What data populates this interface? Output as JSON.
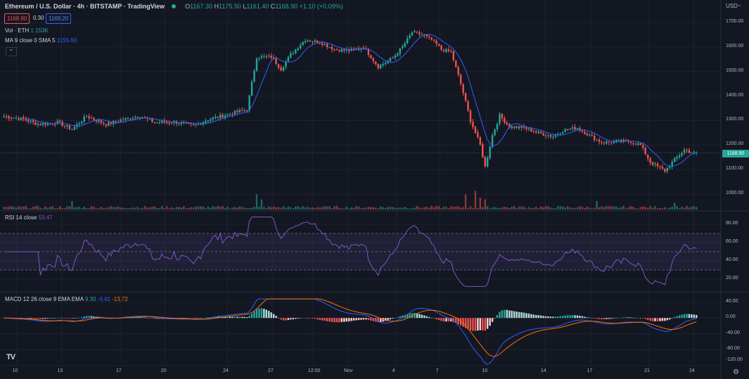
{
  "header": {
    "title": "Ethereum / U.S. Dollar · 4h · BITSTAMP · TradingView",
    "open_key": "O",
    "open": "1167.30",
    "high_key": "H",
    "high": "1175.50",
    "low_key": "L",
    "low": "1161.40",
    "close_key": "C",
    "close": "1168.90",
    "change": "+1.10 (+0.09%)",
    "bid": "1168.90",
    "spread": "0.30",
    "ask": "1169.20",
    "volume_label": "Vol · ETH",
    "volume_value": "1.153K",
    "ma_label": "MA 9 close 0 SMA 5",
    "ma_value": "1155.60",
    "currency": "USD~"
  },
  "rsi_legend": {
    "label": "RSI 14 close",
    "value": "53.47"
  },
  "macd_legend": {
    "label": "MACD 12 26 close 9 EMA EMA",
    "hist": "9.30",
    "macd": "-4.41",
    "signal": "-13.72"
  },
  "last_price_tag": "1168.90",
  "logo": "TV",
  "colors": {
    "up": "#26a69a",
    "down": "#ef5350",
    "ma": "#2962ff",
    "rsi": "#7e57c2",
    "macd": "#2962ff",
    "signal": "#ff6d00",
    "background": "#131722"
  },
  "x_labels": [
    "10",
    "13",
    "17",
    "20",
    "24",
    "27",
    "12:00",
    "Nov",
    "4",
    "7",
    "10",
    "14",
    "17",
    "21",
    "24"
  ],
  "chart_data": [
    {
      "type": "candlestick",
      "title": "Ethereum / U.S. Dollar · 4h · BITSTAMP",
      "ylim": [
        940,
        1740
      ],
      "y_ticks": [
        "1700.00",
        "1600.00",
        "1500.00",
        "1400.00",
        "1300.00",
        "1200.00",
        "1100.00",
        "1000.00"
      ],
      "close_anchors": [
        {
          "i": 0,
          "v": 1318
        },
        {
          "i": 8,
          "v": 1305
        },
        {
          "i": 14,
          "v": 1285
        },
        {
          "i": 22,
          "v": 1292
        },
        {
          "i": 28,
          "v": 1265
        },
        {
          "i": 34,
          "v": 1318
        },
        {
          "i": 42,
          "v": 1284
        },
        {
          "i": 48,
          "v": 1302
        },
        {
          "i": 56,
          "v": 1318
        },
        {
          "i": 62,
          "v": 1292
        },
        {
          "i": 70,
          "v": 1295
        },
        {
          "i": 78,
          "v": 1278
        },
        {
          "i": 84,
          "v": 1305
        },
        {
          "i": 90,
          "v": 1320
        },
        {
          "i": 96,
          "v": 1335
        },
        {
          "i": 100,
          "v": 1345
        },
        {
          "i": 104,
          "v": 1560
        },
        {
          "i": 110,
          "v": 1560
        },
        {
          "i": 114,
          "v": 1510
        },
        {
          "i": 118,
          "v": 1570
        },
        {
          "i": 124,
          "v": 1630
        },
        {
          "i": 130,
          "v": 1620
        },
        {
          "i": 136,
          "v": 1590
        },
        {
          "i": 142,
          "v": 1585
        },
        {
          "i": 148,
          "v": 1600
        },
        {
          "i": 154,
          "v": 1520
        },
        {
          "i": 160,
          "v": 1555
        },
        {
          "i": 164,
          "v": 1600
        },
        {
          "i": 168,
          "v": 1660
        },
        {
          "i": 172,
          "v": 1650
        },
        {
          "i": 176,
          "v": 1630
        },
        {
          "i": 180,
          "v": 1590
        },
        {
          "i": 184,
          "v": 1580
        },
        {
          "i": 188,
          "v": 1450
        },
        {
          "i": 192,
          "v": 1300
        },
        {
          "i": 196,
          "v": 1200
        },
        {
          "i": 198,
          "v": 1110
        },
        {
          "i": 201,
          "v": 1240
        },
        {
          "i": 204,
          "v": 1320
        },
        {
          "i": 208,
          "v": 1275
        },
        {
          "i": 214,
          "v": 1270
        },
        {
          "i": 220,
          "v": 1250
        },
        {
          "i": 226,
          "v": 1235
        },
        {
          "i": 230,
          "v": 1260
        },
        {
          "i": 236,
          "v": 1270
        },
        {
          "i": 240,
          "v": 1245
        },
        {
          "i": 246,
          "v": 1210
        },
        {
          "i": 252,
          "v": 1215
        },
        {
          "i": 258,
          "v": 1215
        },
        {
          "i": 262,
          "v": 1200
        },
        {
          "i": 266,
          "v": 1130
        },
        {
          "i": 272,
          "v": 1095
        },
        {
          "i": 276,
          "v": 1140
        },
        {
          "i": 280,
          "v": 1180
        },
        {
          "i": 284,
          "v": 1169
        }
      ],
      "ma_period": 9
    },
    {
      "type": "bar",
      "name": "Vol · ETH",
      "spikes": [
        {
          "i": 28,
          "v": 5
        },
        {
          "i": 104,
          "v": 9
        },
        {
          "i": 106,
          "v": 6
        },
        {
          "i": 190,
          "v": 9
        },
        {
          "i": 194,
          "v": 11
        },
        {
          "i": 196,
          "v": 7
        },
        {
          "i": 198,
          "v": 6
        },
        {
          "i": 244,
          "v": 5
        },
        {
          "i": 276,
          "v": 4
        }
      ]
    },
    {
      "type": "line",
      "name": "RSI 14 close",
      "ylim": [
        10,
        90
      ],
      "y_ticks": [
        "80.00",
        "60.00",
        "40.00",
        "20.00"
      ],
      "bands": [
        70,
        50,
        30
      ],
      "last_value": 53.47
    },
    {
      "type": "line",
      "name": "MACD 12 26 close 9 EMA EMA",
      "ylim": [
        -120,
        50
      ],
      "y_ticks": [
        "40.00",
        "0.00",
        "-40.00",
        "-80.00",
        "-120.00"
      ],
      "last_hist": 9.3,
      "last_macd": -4.41,
      "last_signal": -13.72
    }
  ]
}
